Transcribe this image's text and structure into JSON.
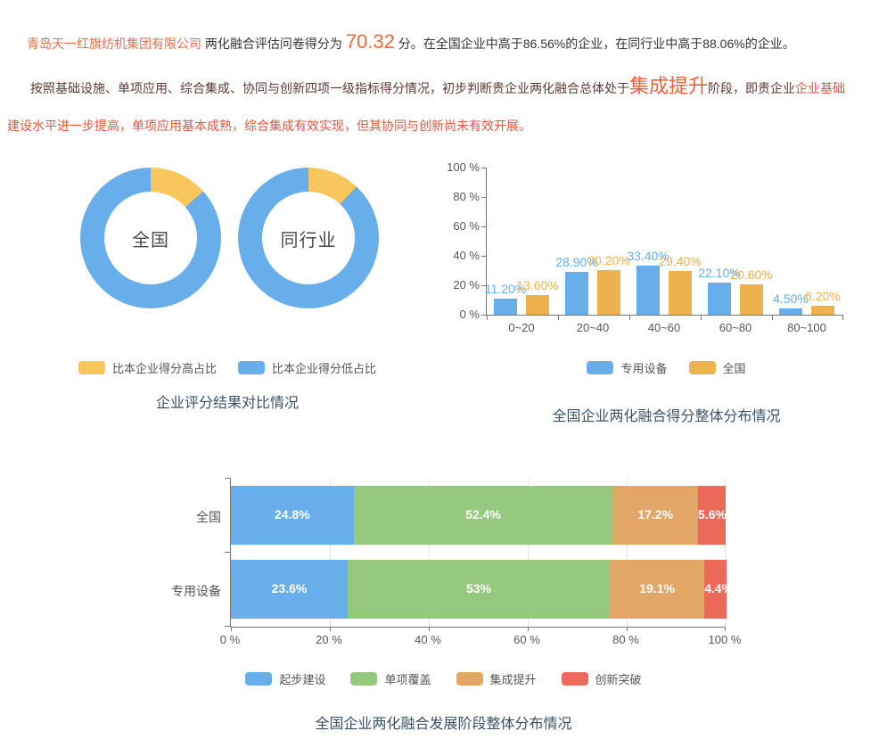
{
  "page": {
    "paragraph1": {
      "company": "青岛天一红旗纺机集团有限公司",
      "lead": " 两化融合评估问卷得分为 ",
      "score": "70.32",
      "tail": " 分。在全国企业中高于86.56%的企业，在同行业中高于88.06%的企业。"
    },
    "paragraph2": {
      "lead": "按照基础设施、单项应用、综合集成、协同与创新四项一级指标得分情况，初步判断贵企业两化融合总体处于",
      "stage": "集成提升",
      "mid": "阶段，即贵企业",
      "desc": "企业基础建设水平进一步提高，单项应用基本成熟，综合集成有效实现，但其协同与创新尚未有效开展。"
    }
  },
  "colors": {
    "company_orange": "#e0714d",
    "score_orange": "#f2683c",
    "stage_orange": "#f2603a",
    "paragraph_dark_red": "#5b3a33",
    "paragraph_bright_red": "#e25643",
    "title_blue": "#3a5166",
    "blue": "#68aeea",
    "yellow": "#f7c65d",
    "gold": "#edb24e",
    "green": "#95ca7e",
    "tan": "#e2a666",
    "red": "#ec6a5a"
  },
  "chart_data": [
    {
      "type": "pie",
      "variant": "donut-pair",
      "title": "企业评分结果对比情况",
      "donuts": [
        {
          "label": "全国",
          "slices": [
            {
              "name": "比本企业得分高占比",
              "value": 13.44
            },
            {
              "name": "比本企业得分低占比",
              "value": 86.56
            }
          ]
        },
        {
          "label": "同行业",
          "slices": [
            {
              "name": "比本企业得分高占比",
              "value": 11.94
            },
            {
              "name": "比本企业得分低占比",
              "value": 88.06
            }
          ]
        }
      ],
      "legend": [
        {
          "label": "比本企业得分高占比",
          "color": "#f7c65d"
        },
        {
          "label": "比本企业得分低占比",
          "color": "#68aeea"
        }
      ],
      "legend_position": "bottom"
    },
    {
      "type": "bar",
      "title": "全国企业两化融合得分整体分布情况",
      "categories": [
        "0~20",
        "20~40",
        "40~60",
        "60~80",
        "80~100"
      ],
      "series": [
        {
          "name": "专用设备",
          "color": "#68aeea",
          "values": [
            11.2,
            28.9,
            33.4,
            22.1,
            4.5
          ],
          "labels": [
            "11.20%",
            "28.90%",
            "33.40%",
            "22.10%",
            "4.50%"
          ]
        },
        {
          "name": "全国",
          "color": "#edb24e",
          "values": [
            13.6,
            30.2,
            29.4,
            20.6,
            6.2
          ],
          "labels": [
            "13.60%",
            "30.20%",
            "29.40%",
            "20.60%",
            "6.20%"
          ]
        }
      ],
      "y_ticks": [
        "100 %",
        "80 %",
        "60 %",
        "40 %",
        "20 %",
        "0 %"
      ],
      "ylim": [
        0,
        100
      ],
      "grid": false,
      "legend_position": "bottom"
    },
    {
      "type": "bar",
      "variant": "horizontal-stacked",
      "title": "全国企业两化融合发展阶段整体分布情况",
      "segments": [
        {
          "name": "起步建设",
          "color": "#68aeea"
        },
        {
          "name": "单项覆盖",
          "color": "#95ca7e"
        },
        {
          "name": "集成提升",
          "color": "#e2a666"
        },
        {
          "name": "创新突破",
          "color": "#ec6a5a"
        }
      ],
      "rows": [
        {
          "label": "全国",
          "values": [
            24.8,
            52.4,
            17.2,
            5.6
          ],
          "labels": [
            "24.8%",
            "52.4%",
            "17.2%",
            "5.6%"
          ]
        },
        {
          "label": "专用设备",
          "values": [
            23.6,
            53,
            19.1,
            4.4
          ],
          "labels": [
            "23.6%",
            "53%",
            "19.1%",
            "4.4%"
          ]
        }
      ],
      "x_ticks": [
        "0 %",
        "20 %",
        "40 %",
        "60 %",
        "80 %",
        "100 %"
      ],
      "xlim": [
        0,
        100
      ],
      "grid": true,
      "legend_position": "bottom"
    }
  ]
}
